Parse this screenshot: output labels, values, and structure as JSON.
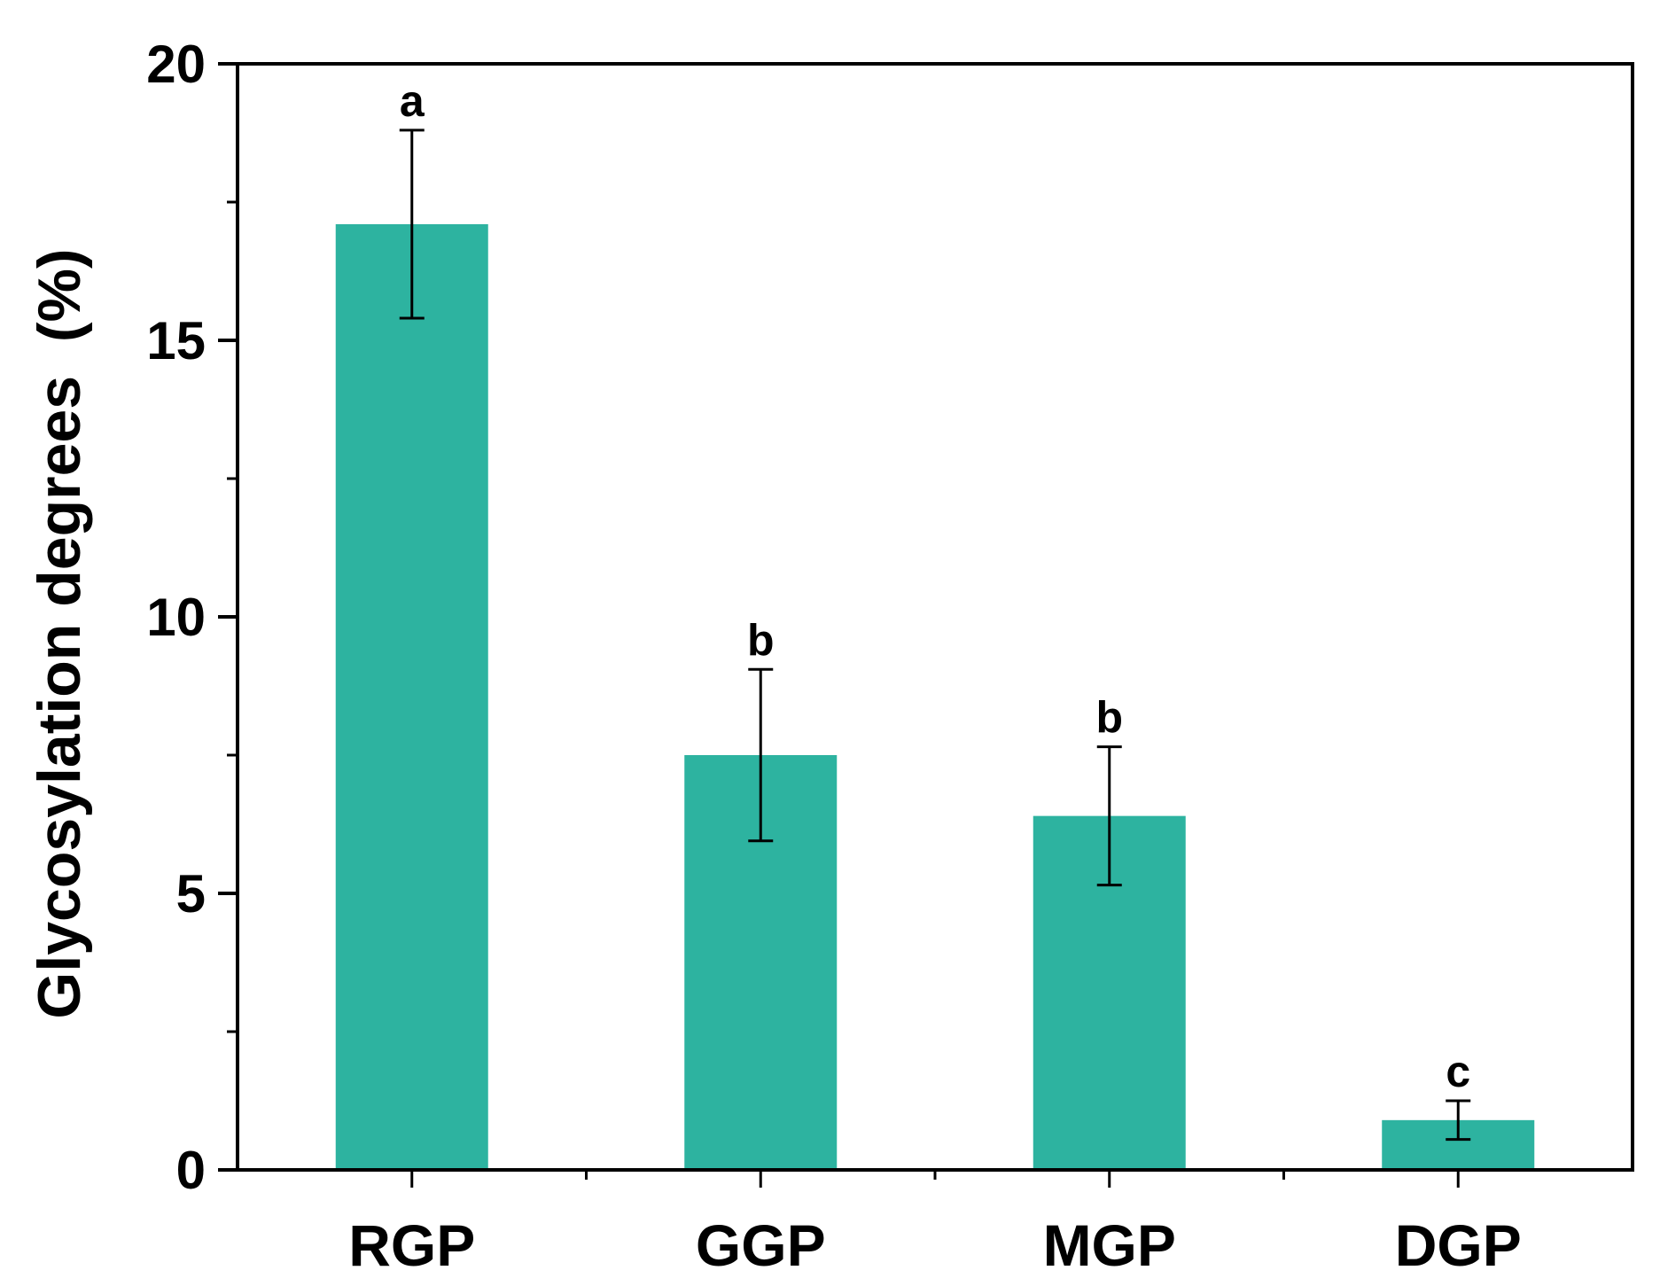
{
  "chart_data": {
    "type": "bar",
    "ylabel": "Glycosylation degrees  (%)",
    "xlabel": "",
    "ylim": [
      0,
      20
    ],
    "yticks": [
      0,
      5,
      10,
      15,
      20
    ],
    "yticks_minor": [
      2.5,
      7.5,
      12.5,
      17.5
    ],
    "categories": [
      "RGP",
      "GGP",
      "MGP",
      "DGP"
    ],
    "values": [
      17.1,
      7.5,
      6.4,
      0.9
    ],
    "errors": [
      1.7,
      1.55,
      1.25,
      0.35
    ],
    "significance": [
      "a",
      "b",
      "b",
      "c"
    ],
    "bar_color": "#2db3a0",
    "grid": false,
    "legend": "none"
  }
}
